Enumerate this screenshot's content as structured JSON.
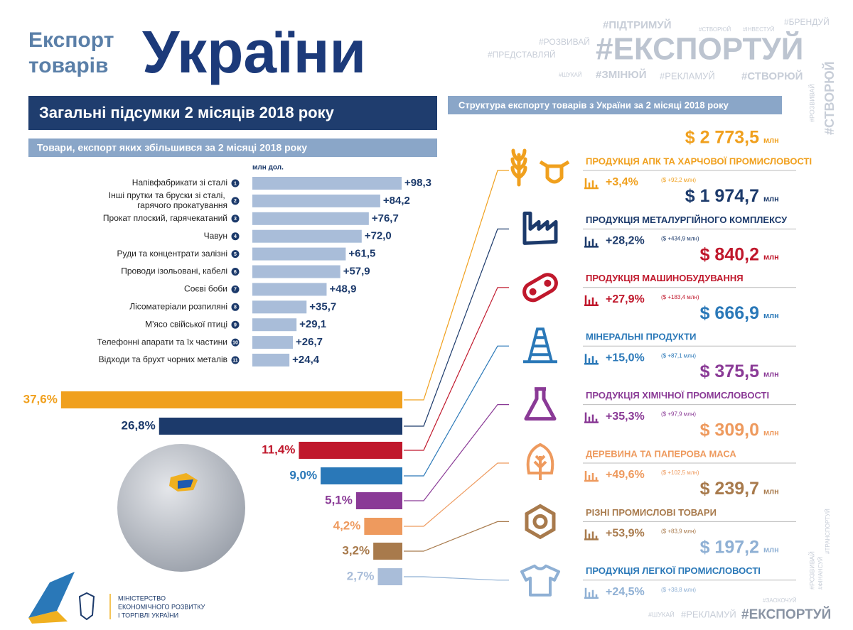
{
  "header": {
    "title_line1": "Експорт",
    "title_line2": "товарів",
    "title_big": "України"
  },
  "hashtags": [
    "#ПІДТРИМУЙ",
    "#СТВОРЮЙ",
    "#ІНВЕСТУЙ",
    "#БРЕНДУЙ",
    "#РОЗВИВАЙ",
    "#ПРЕДСТАВЛЯЙ",
    "#ЕКСПОРТУЙ",
    "#ШУКАЙ",
    "#ЗМІНЮЙ",
    "#РЕКЛАМУЙ",
    "#СТВОРЮЙ",
    "#СТВОРЮЙ",
    "#РОЗВИВАЙ",
    "#ЗАОХОЧУЙ",
    "#ШУКАЙ",
    "#РЕКЛАМУЙ",
    "#ЕКСПОРТУЙ",
    "#РОЗВИВАЙ",
    "#ФІНАНСУЙ",
    "#ТРАНСПОРТУЙ"
  ],
  "section_title": "Загальні підсумки 2 місяців 2018 року",
  "chart_data": [
    {
      "type": "bar",
      "orientation": "horizontal",
      "title": "Товари, експорт яких збільшився за 2 місяці 2018 року",
      "unit_label": "млн дол.",
      "categories": [
        "Напівфабрикати зі сталі",
        "Інші прутки та бруски зі сталі, гарячого прокатування",
        "Прокат плоский, гарячекатаний",
        "Чавун",
        "Руди та концентрати залізні",
        "Проводи ізольовані, кабелі",
        "Соєві боби",
        "Лісоматеріали розпиляні",
        "М'ясо свійської птиці",
        "Телефонні апарати та їх частини",
        "Відходи та брухт чорних металів"
      ],
      "ranks": [
        1,
        2,
        3,
        4,
        5,
        6,
        7,
        8,
        9,
        10,
        11
      ],
      "values": [
        98.3,
        84.2,
        76.7,
        72.0,
        61.5,
        57.9,
        48.9,
        35.7,
        29.1,
        26.7,
        24.4
      ],
      "value_labels": [
        "+98,3",
        "+84,2",
        "+76,7",
        "+72,0",
        "+61,5",
        "+57,9",
        "+48,9",
        "+35,7",
        "+29,1",
        "+26,7",
        "+24,4"
      ],
      "color": "#a9bdd9"
    },
    {
      "type": "share_bar",
      "orientation": "horizontal",
      "values": [
        37.6,
        26.8,
        11.4,
        9.0,
        5.1,
        4.2,
        3.2,
        2.7
      ],
      "value_labels": [
        "37,6%",
        "26,8%",
        "11,4%",
        "9,0%",
        "5,1%",
        "4,2%",
        "3,2%",
        "2,7%"
      ],
      "colors": [
        "#f0a01e",
        "#1c3a6b",
        "#c0182c",
        "#2a78b8",
        "#8a3a96",
        "#ee9a5e",
        "#a87a4c",
        "#a9bdd9"
      ]
    }
  ],
  "structure": {
    "title": "Структура експорту товарів з України за 2 місяці 2018 року",
    "items": [
      {
        "amount": "$ 2 773,5",
        "unit": "млн",
        "name": "ПРОДУКЦІЯ АПК ТА ХАРЧОВОЇ ПРОМИСЛОВОСТІ",
        "growth": "+3,4%",
        "delta": "($ +92,2 млн)",
        "color": "#f0a01e"
      },
      {
        "amount": "$ 1 974,7",
        "unit": "млн",
        "name": "ПРОДУКЦІЯ МЕТАЛУРГІЙНОГО КОМПЛЕКСУ",
        "growth": "+28,2%",
        "delta": "($ +434,9 млн)",
        "color": "#1c3a6b"
      },
      {
        "amount": "$ 840,2",
        "unit": "млн",
        "name": "ПРОДУКЦІЯ МАШИНОБУДУВАННЯ",
        "growth": "+27,9%",
        "delta": "($ +183,4 млн)",
        "color": "#c0182c"
      },
      {
        "amount": "$ 666,9",
        "unit": "млн",
        "name": "МІНЕРАЛЬНІ ПРОДУКТИ",
        "growth": "+15,0%",
        "delta": "($ +87,1 млн)",
        "color": "#2a78b8"
      },
      {
        "amount": "$ 375,5",
        "unit": "млн",
        "name": "ПРОДУКЦІЯ ХІМІЧНОЇ ПРОМИСЛОВОСТІ",
        "growth": "+35,3%",
        "delta": "($ +97,9 млн)",
        "color": "#8a3a96"
      },
      {
        "amount": "$ 309,0",
        "unit": "млн",
        "name": "ДЕРЕВИНА ТА ПАПЕРОВА МАСА",
        "growth": "+49,6%",
        "delta": "($ +102,5 млн)",
        "color": "#ee9a5e"
      },
      {
        "amount": "$ 239,7",
        "unit": "млн",
        "name": "РІЗНІ ПРОМИСЛОВІ ТОВАРИ",
        "growth": "+53,9%",
        "delta": "($ +83,9 млн)",
        "color": "#a87a4c"
      },
      {
        "amount": "$ 197,2",
        "unit": "млн",
        "name": "ПРОДУКЦІЯ ЛЕГКОЇ ПРОМИСЛОВОСТІ",
        "growth": "+24,5%",
        "delta": "($ +38,8 млн)",
        "color": "#8fb0d4"
      }
    ]
  },
  "ministry": [
    "МІНІСТЕРСТВО",
    "ЕКОНОМІЧНОГО РОЗВИТКУ",
    "І ТОРГІВЛІ УКРАЇНИ"
  ]
}
